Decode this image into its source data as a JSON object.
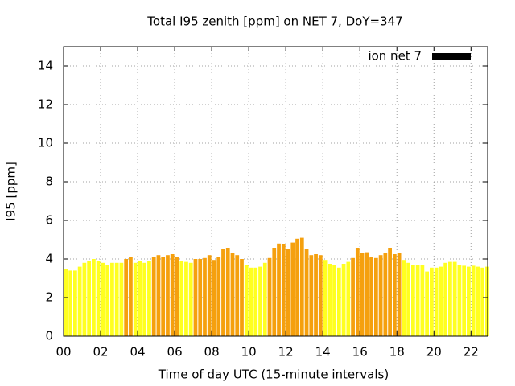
{
  "chart_data": {
    "type": "bar",
    "title": "Total I95 zenith [ppm] on NET 7, DoY=347",
    "xlabel": "Time of day UTC (15-minute intervals)",
    "ylabel": "I95 [ppm]",
    "x": [
      0,
      0.25,
      0.5,
      0.75,
      1,
      1.25,
      1.5,
      1.75,
      2,
      2.25,
      2.5,
      2.75,
      3,
      3.25,
      3.5,
      3.75,
      4,
      4.25,
      4.5,
      4.75,
      5,
      5.25,
      5.5,
      5.75,
      6,
      6.25,
      6.5,
      6.75,
      7,
      7.25,
      7.5,
      7.75,
      8,
      8.25,
      8.5,
      8.75,
      9,
      9.25,
      9.5,
      9.75,
      10,
      10.25,
      10.5,
      10.75,
      11,
      11.25,
      11.5,
      11.75,
      12,
      12.25,
      12.5,
      12.75,
      13,
      13.25,
      13.5,
      13.75,
      14,
      14.25,
      14.5,
      14.75,
      15,
      15.25,
      15.5,
      15.75,
      16,
      16.25,
      16.5,
      16.75,
      17,
      17.25,
      17.5,
      17.75,
      18,
      18.25,
      18.5,
      18.75,
      19,
      19.25,
      19.5,
      19.75,
      20,
      20.25,
      20.5,
      20.75,
      21,
      21.25,
      21.5,
      21.75,
      22,
      22.25,
      22.5,
      22.75
    ],
    "series": [
      {
        "name": "ion net 7",
        "color": "#000000",
        "values": [
          3.5,
          3.4,
          3.4,
          3.6,
          3.8,
          3.9,
          4.0,
          3.9,
          3.8,
          3.7,
          3.8,
          3.8,
          3.8,
          4.0,
          4.1,
          3.8,
          3.9,
          3.8,
          3.9,
          4.1,
          4.2,
          4.1,
          4.2,
          4.25,
          4.1,
          3.9,
          3.85,
          3.8,
          4.0,
          4.0,
          4.05,
          4.2,
          3.95,
          4.1,
          4.5,
          4.55,
          4.3,
          4.2,
          4.0,
          3.7,
          3.55,
          3.55,
          3.6,
          3.8,
          4.05,
          4.55,
          4.8,
          4.75,
          4.5,
          4.85,
          5.05,
          5.1,
          4.5,
          4.2,
          4.25,
          4.2,
          3.95,
          3.75,
          3.7,
          3.55,
          3.75,
          3.85,
          4.05,
          4.55,
          4.3,
          4.35,
          4.1,
          4.05,
          4.2,
          4.3,
          4.55,
          4.25,
          4.3,
          3.95,
          3.8,
          3.7,
          3.7,
          3.7,
          3.35,
          3.55,
          3.55,
          3.6,
          3.8,
          3.85,
          3.85,
          3.7,
          3.65,
          3.6,
          3.65,
          3.6,
          3.55,
          3.6
        ],
        "bar_colors": [
          "#ffff20",
          "#ffff20",
          "#ffff20",
          "#ffff20",
          "#ffff20",
          "#ffff20",
          "#ffff20",
          "#ffff20",
          "#ffff20",
          "#ffff20",
          "#ffff20",
          "#ffff20",
          "#ffff20",
          "#f5a00e",
          "#f5a00e",
          "#ffff20",
          "#ffff20",
          "#ffff20",
          "#ffff20",
          "#f5a00e",
          "#f5a00e",
          "#f5a00e",
          "#f5a00e",
          "#f5a00e",
          "#f5a00e",
          "#ffff20",
          "#ffff20",
          "#ffff20",
          "#f5a00e",
          "#f5a00e",
          "#f5a00e",
          "#f5a00e",
          "#f5a00e",
          "#f5a00e",
          "#f5a00e",
          "#f5a00e",
          "#f5a00e",
          "#f5a00e",
          "#f5a00e",
          "#ffff20",
          "#ffff20",
          "#ffff20",
          "#ffff20",
          "#ffff20",
          "#f5a00e",
          "#f5a00e",
          "#f5a00e",
          "#f5a00e",
          "#f5a00e",
          "#f5a00e",
          "#f5a00e",
          "#f5a00e",
          "#f5a00e",
          "#f5a00e",
          "#f5a00e",
          "#f5a00e",
          "#ffff20",
          "#ffff20",
          "#ffff20",
          "#ffff20",
          "#ffff20",
          "#ffff20",
          "#f5a00e",
          "#f5a00e",
          "#f5a00e",
          "#f5a00e",
          "#f5a00e",
          "#f5a00e",
          "#f5a00e",
          "#f5a00e",
          "#f5a00e",
          "#f5a00e",
          "#f5a00e",
          "#ffff20",
          "#ffff20",
          "#ffff20",
          "#ffff20",
          "#ffff20",
          "#ffff20",
          "#ffff20",
          "#ffff20",
          "#ffff20",
          "#ffff20",
          "#ffff20",
          "#ffff20",
          "#ffff20",
          "#ffff20",
          "#ffff20",
          "#ffff20",
          "#ffff20",
          "#ffff20",
          "#ffff20"
        ]
      }
    ],
    "xlim": [
      0,
      22.9
    ],
    "xticks": [
      {
        "value": 0,
        "label": "00"
      },
      {
        "value": 2,
        "label": "02"
      },
      {
        "value": 4,
        "label": "04"
      },
      {
        "value": 6,
        "label": "06"
      },
      {
        "value": 8,
        "label": "08"
      },
      {
        "value": 10,
        "label": "10"
      },
      {
        "value": 12,
        "label": "12"
      },
      {
        "value": 14,
        "label": "14"
      },
      {
        "value": 16,
        "label": "16"
      },
      {
        "value": 18,
        "label": "18"
      },
      {
        "value": 20,
        "label": "20"
      },
      {
        "value": 22,
        "label": "22"
      }
    ],
    "ylim": [
      0,
      15
    ],
    "yticks": [
      0,
      2,
      4,
      6,
      8,
      10,
      12,
      14
    ],
    "grid": true,
    "legend": "top-right"
  }
}
